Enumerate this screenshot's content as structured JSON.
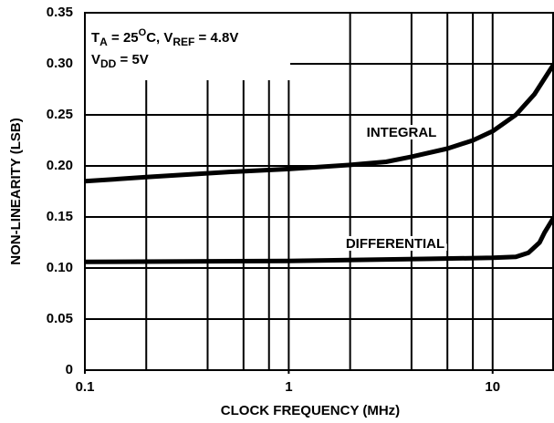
{
  "chart_data": {
    "type": "line",
    "xlabel": "CLOCK FREQUENCY (MHz)",
    "ylabel": "NON-LINEARITY (LSB)",
    "xscale": "log",
    "xlim": [
      0.1,
      20
    ],
    "ylim": [
      0,
      0.35
    ],
    "xticks": [
      0.1,
      1,
      10
    ],
    "xgrid": [
      0.2,
      0.4,
      0.6,
      0.8,
      1,
      2,
      4,
      6,
      8,
      10
    ],
    "yticks": [
      0,
      0.05,
      {
        "value": 0.1,
        "label": "0.10"
      },
      0.15,
      {
        "value": 0.2,
        "label": "0.20"
      },
      0.25,
      {
        "value": 0.3,
        "label": "0.30"
      },
      0.35
    ],
    "grid": true,
    "annotation": [
      [
        {
          "t": "T"
        },
        {
          "t": "A",
          "shift": "sub"
        },
        {
          "t": " = 25"
        },
        {
          "t": "O",
          "shift": "sup"
        },
        {
          "t": "C, V"
        },
        {
          "t": "REF",
          "shift": "sub"
        },
        {
          "t": " = 4.8V"
        }
      ],
      [
        {
          "t": "V"
        },
        {
          "t": "DD",
          "shift": "sub"
        },
        {
          "t": " = 5V"
        }
      ]
    ],
    "series": [
      {
        "name": "INTEGRAL",
        "color": "#000000",
        "x": [
          0.1,
          0.2,
          0.5,
          1,
          2,
          3,
          4,
          6,
          8,
          10,
          13,
          16,
          20
        ],
        "values": [
          0.185,
          0.189,
          0.194,
          0.197,
          0.201,
          0.204,
          0.209,
          0.217,
          0.225,
          0.234,
          0.25,
          0.27,
          0.3
        ]
      },
      {
        "name": "DIFFERENTIAL",
        "color": "#000000",
        "x": [
          0.1,
          1,
          5,
          10,
          13,
          15,
          17,
          18,
          20
        ],
        "values": [
          0.106,
          0.107,
          0.109,
          0.11,
          0.111,
          0.115,
          0.125,
          0.135,
          0.15
        ]
      }
    ]
  }
}
